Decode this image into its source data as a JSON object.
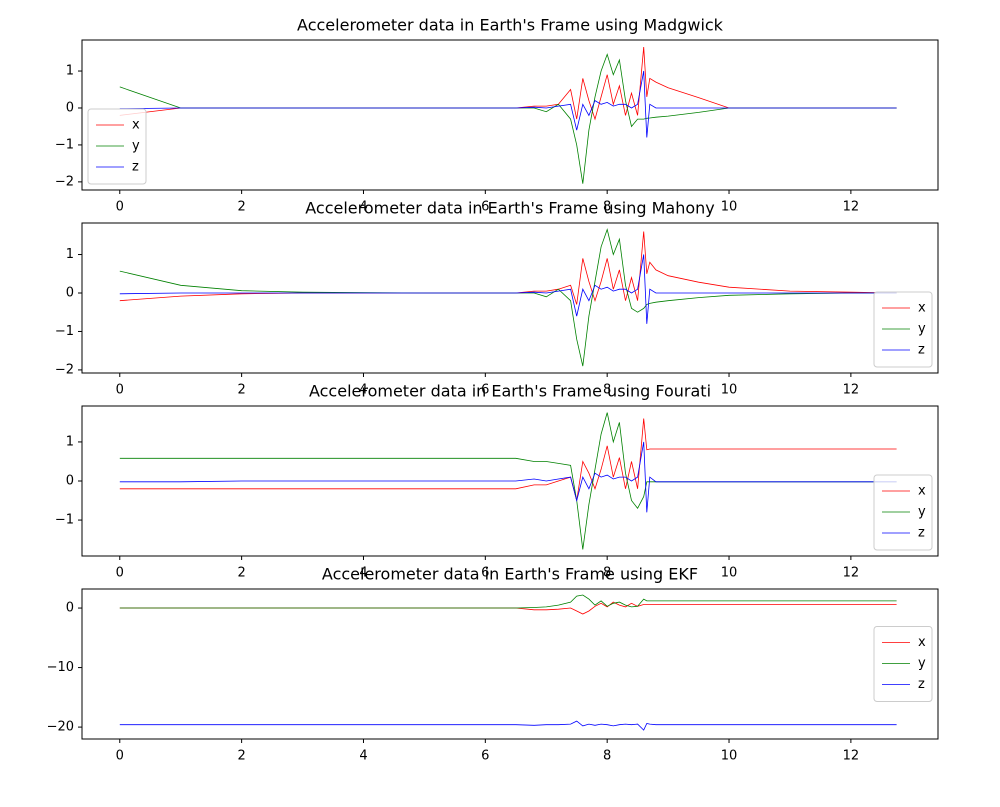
{
  "chart_data": [
    {
      "type": "line",
      "title": "Accelerometer data in Earth's Frame using Madgwick",
      "legend": "lower left",
      "x": [
        0,
        1,
        2,
        3,
        4,
        5,
        6,
        6.5,
        6.8,
        7.0,
        7.2,
        7.4,
        7.5,
        7.6,
        7.7,
        7.8,
        7.9,
        8.0,
        8.1,
        8.2,
        8.3,
        8.4,
        8.5,
        8.6,
        8.65,
        8.7,
        8.8,
        9.0,
        9.5,
        10,
        11,
        12,
        12.75
      ],
      "xlim": [
        -0.62,
        13.43
      ],
      "xticks": [
        0,
        2,
        4,
        6,
        8,
        10,
        12
      ],
      "ylim": [
        -2.22,
        1.84
      ],
      "yticks": [
        {
          "value": -2,
          "label": "−2"
        },
        {
          "value": -1,
          "label": "−1"
        },
        0,
        1
      ],
      "series": [
        {
          "name": "x",
          "color": "#ff0000",
          "values": [
            -0.2,
            0,
            0,
            0,
            0,
            0,
            0,
            0,
            0.05,
            0.05,
            0.1,
            0.5,
            -0.3,
            0.8,
            0.2,
            -0.3,
            0.3,
            0.9,
            0.1,
            0.6,
            -0.2,
            0.4,
            -0.2,
            1.65,
            0.3,
            0.8,
            0.7,
            0.55,
            0.28,
            0,
            0,
            0,
            0
          ]
        },
        {
          "name": "y",
          "color": "#008000",
          "values": [
            0.57,
            0,
            0,
            0,
            0,
            0,
            0,
            0,
            0,
            -0.1,
            0.1,
            -0.3,
            -1.0,
            -2.05,
            -0.6,
            0.3,
            1.0,
            1.45,
            0.9,
            1.3,
            0.2,
            -0.5,
            -0.3,
            -0.3,
            -0.28,
            -0.27,
            -0.25,
            -0.22,
            -0.12,
            0,
            0,
            0,
            0
          ]
        },
        {
          "name": "z",
          "color": "#0000ff",
          "values": [
            -0.02,
            0,
            0,
            0,
            0,
            0,
            0,
            0,
            0.02,
            0,
            0.05,
            0.1,
            -0.6,
            0.1,
            -0.2,
            0.2,
            0.1,
            0.15,
            0.05,
            0.1,
            0.1,
            0,
            0.1,
            1.0,
            -0.8,
            0.1,
            0,
            0,
            0,
            0,
            0,
            0,
            0
          ]
        }
      ]
    },
    {
      "type": "line",
      "title": "Accelerometer data in Earth's Frame using Mahony",
      "legend": "lower right",
      "x": [
        0,
        1,
        2,
        3,
        4,
        5,
        6,
        6.5,
        6.8,
        7.0,
        7.2,
        7.4,
        7.5,
        7.6,
        7.7,
        7.8,
        7.9,
        8.0,
        8.1,
        8.2,
        8.3,
        8.4,
        8.5,
        8.6,
        8.65,
        8.7,
        8.8,
        9.0,
        9.5,
        10,
        11,
        12,
        12.75
      ],
      "xlim": [
        -0.62,
        13.43
      ],
      "xticks": [
        0,
        2,
        4,
        6,
        8,
        10,
        12
      ],
      "ylim": [
        -2.08,
        1.82
      ],
      "yticks": [
        {
          "value": -2,
          "label": "−2"
        },
        {
          "value": -1,
          "label": "−1"
        },
        0,
        1
      ],
      "series": [
        {
          "name": "x",
          "color": "#ff0000",
          "values": [
            -0.2,
            -0.08,
            -0.02,
            0,
            0,
            0,
            0,
            0,
            0.05,
            0.05,
            0.1,
            0.2,
            -0.3,
            0.9,
            0.3,
            -0.2,
            0.3,
            0.9,
            0.1,
            0.6,
            -0.2,
            0.4,
            -0.2,
            1.6,
            0.5,
            0.8,
            0.6,
            0.45,
            0.28,
            0.15,
            0.05,
            0.02,
            0
          ]
        },
        {
          "name": "y",
          "color": "#008000",
          "values": [
            0.57,
            0.2,
            0.06,
            0.02,
            0.01,
            0,
            0,
            0,
            0,
            -0.1,
            0.1,
            -0.2,
            -1.2,
            -1.9,
            -0.6,
            0.3,
            1.2,
            1.65,
            1.0,
            1.4,
            0.2,
            -0.4,
            -0.5,
            -0.4,
            -0.3,
            -0.27,
            -0.24,
            -0.2,
            -0.12,
            -0.06,
            -0.02,
            0,
            0
          ]
        },
        {
          "name": "z",
          "color": "#0000ff",
          "values": [
            -0.02,
            0,
            0,
            0,
            0,
            0,
            0,
            0,
            0.02,
            0,
            0.05,
            0.1,
            -0.6,
            0.1,
            -0.2,
            0.2,
            0.1,
            0.15,
            0.05,
            0.1,
            0.1,
            0,
            0.1,
            1.0,
            -0.8,
            0.1,
            0,
            0,
            0,
            0,
            0,
            0,
            0
          ]
        }
      ]
    },
    {
      "type": "line",
      "title": "Accelerometer data in Earth's Frame using Fourati",
      "legend": "lower right",
      "x": [
        0,
        1,
        2,
        3,
        4,
        5,
        6,
        6.5,
        6.8,
        7.0,
        7.2,
        7.4,
        7.5,
        7.6,
        7.7,
        7.8,
        7.9,
        8.0,
        8.1,
        8.2,
        8.3,
        8.4,
        8.5,
        8.6,
        8.65,
        8.7,
        8.8,
        9.0,
        9.5,
        10,
        11,
        12,
        12.75
      ],
      "xlim": [
        -0.62,
        13.43
      ],
      "xticks": [
        0,
        2,
        4,
        6,
        8,
        10,
        12
      ],
      "ylim": [
        -1.92,
        1.92
      ],
      "yticks": [
        {
          "value": -1,
          "label": "−1"
        },
        0,
        1
      ],
      "series": [
        {
          "name": "x",
          "color": "#ff0000",
          "values": [
            -0.2,
            -0.2,
            -0.2,
            -0.2,
            -0.2,
            -0.2,
            -0.2,
            -0.2,
            -0.1,
            -0.1,
            0,
            0.1,
            -0.5,
            0.5,
            0.2,
            -0.2,
            0.3,
            0.9,
            0.1,
            0.6,
            -0.2,
            0.5,
            -0.2,
            1.6,
            0.8,
            0.82,
            0.82,
            0.82,
            0.82,
            0.82,
            0.82,
            0.82,
            0.82
          ]
        },
        {
          "name": "y",
          "color": "#008000",
          "values": [
            0.58,
            0.58,
            0.58,
            0.58,
            0.58,
            0.58,
            0.58,
            0.58,
            0.5,
            0.5,
            0.45,
            0.4,
            -0.5,
            -1.75,
            -0.6,
            0.3,
            1.2,
            1.75,
            1.0,
            1.5,
            0.2,
            -0.5,
            -0.7,
            -0.4,
            -0.02,
            -0.02,
            -0.02,
            -0.02,
            -0.02,
            -0.02,
            -0.02,
            -0.02,
            -0.02
          ]
        },
        {
          "name": "z",
          "color": "#0000ff",
          "values": [
            -0.02,
            -0.02,
            0,
            0,
            0,
            0,
            0,
            0,
            0.05,
            0,
            0.05,
            0.1,
            -0.5,
            0.1,
            -0.2,
            0.2,
            0.1,
            0.15,
            0.05,
            0.1,
            0.1,
            0,
            0.1,
            1.0,
            -0.8,
            0.1,
            -0.02,
            -0.02,
            -0.02,
            -0.02,
            -0.02,
            -0.02,
            -0.02
          ]
        }
      ]
    },
    {
      "type": "line",
      "title": "Accelerometer data in Earth's Frame using EKF",
      "legend": "center right",
      "x": [
        0,
        1,
        2,
        3,
        4,
        5,
        6,
        6.5,
        6.8,
        7.0,
        7.2,
        7.4,
        7.5,
        7.6,
        7.7,
        7.8,
        7.9,
        8.0,
        8.1,
        8.2,
        8.3,
        8.4,
        8.5,
        8.6,
        8.65,
        8.7,
        8.8,
        9.0,
        9.5,
        10,
        11,
        12,
        12.75
      ],
      "xlim": [
        -0.62,
        13.43
      ],
      "xticks": [
        0,
        2,
        4,
        6,
        8,
        10,
        12
      ],
      "ylim": [
        -22.0,
        3.2
      ],
      "yticks": [
        {
          "value": -20,
          "label": "−20"
        },
        {
          "value": -10,
          "label": "−10"
        },
        0
      ],
      "series": [
        {
          "name": "x",
          "color": "#ff0000",
          "values": [
            0,
            0,
            0,
            0,
            0,
            0,
            0,
            0,
            -0.3,
            -0.3,
            -0.2,
            0,
            -0.5,
            -1.0,
            -0.5,
            0.3,
            0.8,
            0.2,
            1.0,
            0.5,
            0.2,
            0.8,
            0.3,
            0.6,
            0.6,
            0.6,
            0.6,
            0.6,
            0.6,
            0.6,
            0.6,
            0.6,
            0.6
          ]
        },
        {
          "name": "y",
          "color": "#008000",
          "values": [
            0,
            0,
            0,
            0,
            0,
            0,
            0,
            0,
            0.1,
            0.2,
            0.5,
            1.0,
            2.0,
            2.2,
            1.5,
            0.5,
            1.2,
            0.3,
            0.8,
            1.0,
            0.5,
            0.2,
            0.3,
            1.5,
            1.2,
            1.2,
            1.2,
            1.2,
            1.2,
            1.2,
            1.2,
            1.2,
            1.2
          ]
        },
        {
          "name": "z",
          "color": "#0000ff",
          "values": [
            -19.6,
            -19.6,
            -19.6,
            -19.6,
            -19.6,
            -19.6,
            -19.6,
            -19.6,
            -19.7,
            -19.6,
            -19.6,
            -19.5,
            -19.0,
            -19.8,
            -19.5,
            -19.7,
            -19.5,
            -19.6,
            -19.8,
            -19.6,
            -19.5,
            -19.6,
            -19.5,
            -20.5,
            -19.4,
            -19.5,
            -19.6,
            -19.6,
            -19.6,
            -19.6,
            -19.6,
            -19.6,
            -19.6
          ]
        }
      ]
    }
  ]
}
